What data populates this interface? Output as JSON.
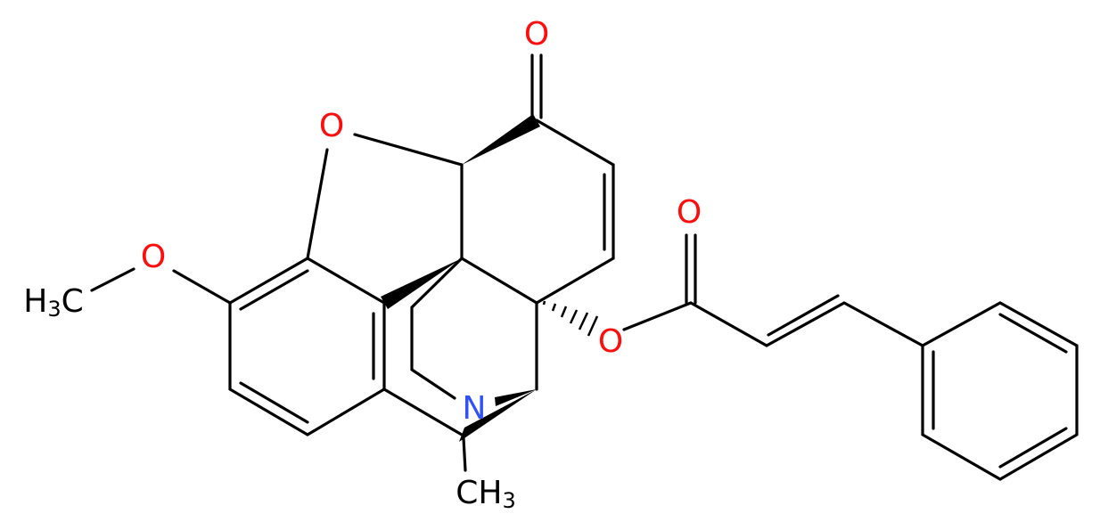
{
  "molecule": {
    "atoms": [
      {
        "parts": [
          "O"
        ],
        "color": "#ff0d0d"
      },
      {
        "parts": [
          "O"
        ],
        "color": "#ff0d0d"
      },
      {
        "parts": [
          "O"
        ],
        "color": "#ff0d0d"
      },
      {
        "parts": [
          "H",
          "3",
          "C"
        ],
        "color": "#000000"
      },
      {
        "parts": [
          "N"
        ],
        "color": "#3050f8"
      },
      {
        "parts": [
          "CH",
          "3"
        ],
        "color": "#000000"
      },
      {
        "parts": [
          "O"
        ],
        "color": "#ff0d0d"
      },
      {
        "parts": [
          "O"
        ],
        "color": "#ff0d0d"
      }
    ]
  }
}
